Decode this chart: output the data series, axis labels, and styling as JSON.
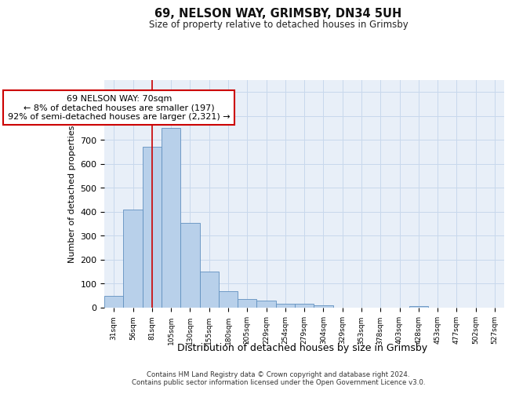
{
  "title_line1": "69, NELSON WAY, GRIMSBY, DN34 5UH",
  "title_line2": "Size of property relative to detached houses in Grimsby",
  "xlabel": "Distribution of detached houses by size in Grimsby",
  "ylabel": "Number of detached properties",
  "categories": [
    "31sqm",
    "56sqm",
    "81sqm",
    "105sqm",
    "130sqm",
    "155sqm",
    "180sqm",
    "205sqm",
    "229sqm",
    "254sqm",
    "279sqm",
    "304sqm",
    "329sqm",
    "353sqm",
    "378sqm",
    "403sqm",
    "428sqm",
    "453sqm",
    "477sqm",
    "502sqm",
    "527sqm"
  ],
  "values": [
    50,
    410,
    670,
    750,
    355,
    150,
    70,
    35,
    28,
    17,
    15,
    10,
    0,
    0,
    0,
    0,
    7,
    0,
    0,
    0,
    0
  ],
  "bar_color": "#b8d0ea",
  "bar_edge_color": "#6090c0",
  "grid_color": "#c8d8ec",
  "background_color": "#e8eff8",
  "vline_x_index": 2,
  "vline_color": "#cc0000",
  "annotation_text": "69 NELSON WAY: 70sqm\n← 8% of detached houses are smaller (197)\n92% of semi-detached houses are larger (2,321) →",
  "annotation_box_color": "#ffffff",
  "annotation_box_edge": "#cc0000",
  "ylim": [
    0,
    950
  ],
  "yticks": [
    0,
    100,
    200,
    300,
    400,
    500,
    600,
    700,
    800,
    900
  ],
  "footer": "Contains HM Land Registry data © Crown copyright and database right 2024.\nContains public sector information licensed under the Open Government Licence v3.0."
}
